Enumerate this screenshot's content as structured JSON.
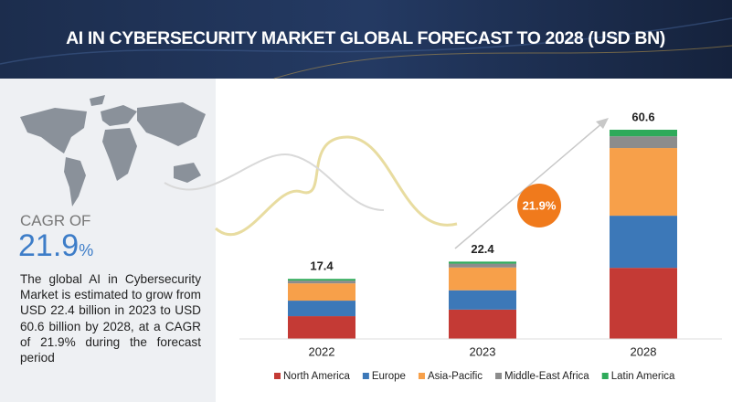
{
  "chart_data": {
    "type": "stacked-bar",
    "title": "AI IN CYBERSECURITY MARKET GLOBAL FORECAST TO 2028 (USD BN)",
    "categories": [
      "2022",
      "2023",
      "2028"
    ],
    "totals": [
      17.4,
      22.4,
      60.6
    ],
    "series": [
      {
        "name": "North America",
        "color": "#c43a35",
        "values": [
          6.6,
          8.5,
          20.6
        ]
      },
      {
        "name": "Europe",
        "color": "#3c78b8",
        "values": [
          4.5,
          5.6,
          15.1
        ]
      },
      {
        "name": "Asia-Pacific",
        "color": "#f7a04a",
        "values": [
          5.0,
          6.6,
          19.6
        ]
      },
      {
        "name": "Middle-East Africa",
        "color": "#8c8c8c",
        "values": [
          0.8,
          1.1,
          3.4
        ]
      },
      {
        "name": "Latin America",
        "color": "#2eaa5a",
        "values": [
          0.5,
          0.6,
          1.9
        ]
      }
    ],
    "growth_label": "21.9%",
    "legend": "bottom"
  },
  "side_panel": {
    "cagr_caption": "CAGR OF",
    "cagr_value": "21.9",
    "cagr_unit": "%",
    "description": "The global AI in Cybersecurity Market is estimated to grow from USD 22.4 billion in 2023 to USD 60.6 billion by 2028, at a CAGR of 21.9% during the forecast period"
  }
}
